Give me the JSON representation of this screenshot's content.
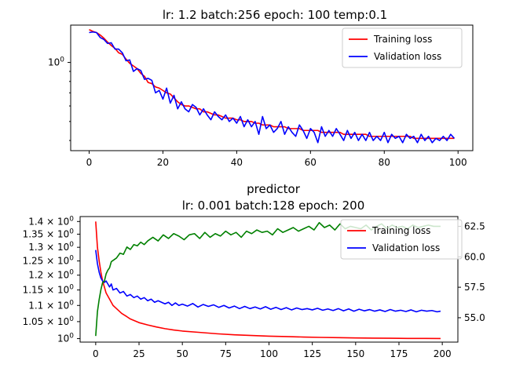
{
  "chart_data": [
    {
      "type": "line",
      "title": "lr: 1.2 batch:256 epoch: 100 temp:0.1",
      "xlabel": "",
      "ylabel": "",
      "yscale": "log",
      "xlim": [
        -5,
        104
      ],
      "ylim": [
        0.355,
        1.55
      ],
      "xticks": [
        0,
        20,
        40,
        60,
        80,
        100
      ],
      "xtick_labels": [
        "0",
        "20",
        "40",
        "60",
        "80",
        "100"
      ],
      "yticks": [
        1.0
      ],
      "ytick_labels": [
        "10^0"
      ],
      "ytick_base": "10",
      "ytick_exp": "0",
      "legend_position": "top-right",
      "series": [
        {
          "name": "Training loss",
          "color": "#ff0000",
          "x": [
            0,
            1,
            2,
            3,
            4,
            5,
            6,
            7,
            8,
            9,
            10,
            11,
            12,
            13,
            14,
            15,
            16,
            17,
            18,
            19,
            20,
            21,
            22,
            23,
            24,
            25,
            26,
            27,
            28,
            29,
            30,
            31,
            32,
            33,
            34,
            35,
            36,
            37,
            38,
            39,
            40,
            41,
            42,
            43,
            44,
            45,
            46,
            47,
            48,
            49,
            50,
            51,
            52,
            53,
            54,
            55,
            56,
            57,
            58,
            59,
            60,
            61,
            62,
            63,
            64,
            65,
            66,
            67,
            68,
            69,
            70,
            71,
            72,
            73,
            74,
            75,
            76,
            77,
            78,
            79,
            80,
            81,
            82,
            83,
            84,
            85,
            86,
            87,
            88,
            89,
            90,
            91,
            92,
            93,
            94,
            95,
            96,
            97,
            98,
            99
          ],
          "y": [
            1.47,
            1.44,
            1.42,
            1.38,
            1.33,
            1.27,
            1.22,
            1.18,
            1.12,
            1.1,
            1.04,
            0.99,
            0.96,
            0.93,
            0.88,
            0.85,
            0.79,
            0.78,
            0.75,
            0.74,
            0.72,
            0.7,
            0.69,
            0.66,
            0.63,
            0.61,
            0.6,
            0.6,
            0.59,
            0.58,
            0.58,
            0.56,
            0.56,
            0.55,
            0.54,
            0.54,
            0.53,
            0.52,
            0.52,
            0.52,
            0.51,
            0.51,
            0.5,
            0.5,
            0.5,
            0.49,
            0.49,
            0.48,
            0.48,
            0.48,
            0.47,
            0.47,
            0.47,
            0.47,
            0.46,
            0.46,
            0.46,
            0.46,
            0.45,
            0.45,
            0.45,
            0.45,
            0.45,
            0.44,
            0.44,
            0.44,
            0.44,
            0.44,
            0.44,
            0.43,
            0.43,
            0.43,
            0.43,
            0.43,
            0.43,
            0.43,
            0.42,
            0.42,
            0.42,
            0.42,
            0.42,
            0.42,
            0.42,
            0.42,
            0.42,
            0.42,
            0.42,
            0.42,
            0.41,
            0.41,
            0.41,
            0.41,
            0.41,
            0.41,
            0.41,
            0.41,
            0.41,
            0.41,
            0.41,
            0.41
          ]
        },
        {
          "name": "Validation loss",
          "color": "#0000ff",
          "x": [
            0,
            1,
            2,
            3,
            4,
            5,
            6,
            7,
            8,
            9,
            10,
            11,
            12,
            13,
            14,
            15,
            16,
            17,
            18,
            19,
            20,
            21,
            22,
            23,
            24,
            25,
            26,
            27,
            28,
            29,
            30,
            31,
            32,
            33,
            34,
            35,
            36,
            37,
            38,
            39,
            40,
            41,
            42,
            43,
            44,
            45,
            46,
            47,
            48,
            49,
            50,
            51,
            52,
            53,
            54,
            55,
            56,
            57,
            58,
            59,
            60,
            61,
            62,
            63,
            64,
            65,
            66,
            67,
            68,
            69,
            70,
            71,
            72,
            73,
            74,
            75,
            76,
            77,
            78,
            79,
            80,
            81,
            82,
            83,
            84,
            85,
            86,
            87,
            88,
            89,
            90,
            91,
            92,
            93,
            94,
            95,
            96,
            97,
            98,
            99
          ],
          "y": [
            1.42,
            1.43,
            1.42,
            1.34,
            1.31,
            1.25,
            1.26,
            1.17,
            1.17,
            1.12,
            1.02,
            1.03,
            0.9,
            0.93,
            0.91,
            0.82,
            0.83,
            0.81,
            0.7,
            0.72,
            0.65,
            0.74,
            0.62,
            0.68,
            0.58,
            0.63,
            0.58,
            0.56,
            0.61,
            0.59,
            0.54,
            0.58,
            0.54,
            0.51,
            0.56,
            0.53,
            0.51,
            0.54,
            0.5,
            0.52,
            0.49,
            0.53,
            0.47,
            0.51,
            0.47,
            0.5,
            0.43,
            0.53,
            0.46,
            0.48,
            0.44,
            0.46,
            0.5,
            0.43,
            0.47,
            0.44,
            0.42,
            0.48,
            0.45,
            0.41,
            0.46,
            0.44,
            0.39,
            0.47,
            0.42,
            0.45,
            0.42,
            0.46,
            0.43,
            0.4,
            0.45,
            0.41,
            0.44,
            0.4,
            0.43,
            0.4,
            0.44,
            0.4,
            0.42,
            0.4,
            0.44,
            0.39,
            0.43,
            0.41,
            0.42,
            0.39,
            0.43,
            0.41,
            0.42,
            0.39,
            0.43,
            0.4,
            0.42,
            0.39,
            0.41,
            0.4,
            0.42,
            0.4,
            0.43,
            0.41
          ]
        }
      ]
    },
    {
      "type": "line",
      "title": "predictor",
      "subtitle": "lr: 0.001 batch:128 epoch: 200",
      "xlabel": "",
      "ylabel": "",
      "yscale": "log",
      "xlim": [
        -9,
        209
      ],
      "ylim": [
        0.99,
        1.42
      ],
      "xticks": [
        0,
        25,
        50,
        75,
        100,
        125,
        150,
        175,
        200
      ],
      "xtick_labels": [
        "0",
        "25",
        "50",
        "75",
        "100",
        "125",
        "150",
        "175",
        "200"
      ],
      "yticks": [
        1.0,
        1.05,
        1.1,
        1.15,
        1.2,
        1.25,
        1.3,
        1.35,
        1.4
      ],
      "ytick_mantissas": [
        "",
        "1.05",
        "1.1",
        "1.15",
        "1.2",
        "1.25",
        "1.3",
        "1.35",
        "1.4"
      ],
      "ytick_base": "10",
      "ytick_exp": "0",
      "ytick_times": "×",
      "y2lim": [
        53.0,
        63.3
      ],
      "y2ticks": [
        55.0,
        57.5,
        60.0,
        62.5
      ],
      "y2tick_labels": [
        "55.0",
        "57.5",
        "60.0",
        "62.5"
      ],
      "legend_position": "top-right",
      "series": [
        {
          "name": "Training loss",
          "color": "#ff0000",
          "axis": "left",
          "x": [
            0,
            1,
            2,
            3,
            4,
            5,
            6,
            8,
            10,
            12,
            15,
            18,
            20,
            25,
            30,
            35,
            40,
            45,
            50,
            60,
            70,
            80,
            90,
            100,
            110,
            120,
            130,
            140,
            150,
            160,
            170,
            180,
            190,
            199
          ],
          "y": [
            1.4,
            1.3,
            1.25,
            1.21,
            1.18,
            1.16,
            1.14,
            1.12,
            1.1,
            1.09,
            1.075,
            1.065,
            1.058,
            1.047,
            1.04,
            1.034,
            1.029,
            1.025,
            1.022,
            1.018,
            1.014,
            1.011,
            1.009,
            1.007,
            1.006,
            1.0045,
            1.0035,
            1.0027,
            1.002,
            1.0014,
            1.001,
            1.0006,
            1.0004,
            1.0003
          ]
        },
        {
          "name": "Validation loss",
          "color": "#0000ff",
          "axis": "left",
          "x": [
            0,
            1,
            2,
            3,
            4,
            5,
            6,
            7,
            8,
            9,
            10,
            12,
            14,
            16,
            18,
            20,
            22,
            24,
            26,
            28,
            30,
            32,
            34,
            36,
            38,
            40,
            42,
            44,
            46,
            48,
            50,
            53,
            56,
            59,
            62,
            65,
            68,
            71,
            74,
            77,
            80,
            83,
            86,
            89,
            92,
            95,
            98,
            101,
            104,
            107,
            110,
            113,
            116,
            119,
            122,
            125,
            128,
            131,
            134,
            137,
            140,
            143,
            146,
            149,
            152,
            155,
            158,
            161,
            164,
            167,
            170,
            173,
            176,
            179,
            182,
            185,
            188,
            191,
            194,
            197,
            199
          ],
          "y": [
            1.29,
            1.24,
            1.21,
            1.19,
            1.18,
            1.175,
            1.18,
            1.17,
            1.16,
            1.17,
            1.15,
            1.155,
            1.14,
            1.145,
            1.13,
            1.135,
            1.125,
            1.13,
            1.12,
            1.125,
            1.115,
            1.12,
            1.11,
            1.115,
            1.11,
            1.105,
            1.11,
            1.1,
            1.108,
            1.1,
            1.104,
            1.098,
            1.106,
            1.095,
            1.103,
            1.097,
            1.102,
            1.094,
            1.1,
            1.092,
            1.098,
            1.09,
            1.097,
            1.09,
            1.095,
            1.089,
            1.096,
            1.088,
            1.094,
            1.087,
            1.093,
            1.086,
            1.092,
            1.087,
            1.09,
            1.086,
            1.091,
            1.085,
            1.089,
            1.084,
            1.09,
            1.083,
            1.089,
            1.082,
            1.088,
            1.083,
            1.087,
            1.082,
            1.086,
            1.081,
            1.087,
            1.082,
            1.085,
            1.081,
            1.086,
            1.08,
            1.085,
            1.082,
            1.084,
            1.08,
            1.082
          ]
        },
        {
          "name": "",
          "color": "#008000",
          "axis": "right",
          "x": [
            0,
            1,
            2,
            3,
            4,
            5,
            6,
            7,
            8,
            9,
            10,
            12,
            14,
            16,
            18,
            20,
            22,
            24,
            26,
            28,
            30,
            33,
            36,
            39,
            42,
            45,
            48,
            51,
            54,
            57,
            60,
            63,
            66,
            69,
            72,
            75,
            78,
            81,
            84,
            87,
            90,
            93,
            96,
            99,
            102,
            105,
            108,
            111,
            114,
            117,
            120,
            123,
            126,
            129,
            132,
            135,
            138,
            141,
            144,
            147,
            150,
            153,
            156,
            159,
            162,
            165,
            168,
            171,
            174,
            177,
            180,
            183,
            186,
            189,
            192,
            195,
            199
          ],
          "y": [
            53.5,
            55.5,
            56.5,
            57.3,
            57.9,
            58.0,
            58.6,
            58.9,
            59.1,
            59.6,
            59.7,
            59.9,
            60.3,
            60.2,
            60.8,
            60.6,
            61.0,
            60.9,
            61.2,
            61.0,
            61.3,
            61.6,
            61.3,
            61.8,
            61.5,
            61.9,
            61.7,
            61.4,
            61.8,
            61.9,
            61.5,
            62.0,
            61.6,
            61.9,
            61.7,
            62.1,
            61.8,
            62.0,
            61.6,
            62.1,
            61.9,
            62.2,
            62.0,
            62.1,
            61.8,
            62.3,
            62.0,
            62.2,
            62.4,
            62.1,
            62.3,
            62.5,
            62.2,
            62.8,
            62.4,
            62.6,
            62.2,
            62.7,
            62.3,
            62.5,
            62.4,
            62.3,
            62.6,
            62.2,
            62.5,
            62.7,
            62.3,
            62.6,
            62.4,
            62.5,
            62.3,
            62.6,
            62.4,
            62.5,
            62.6,
            62.5,
            62.5
          ]
        }
      ]
    }
  ]
}
